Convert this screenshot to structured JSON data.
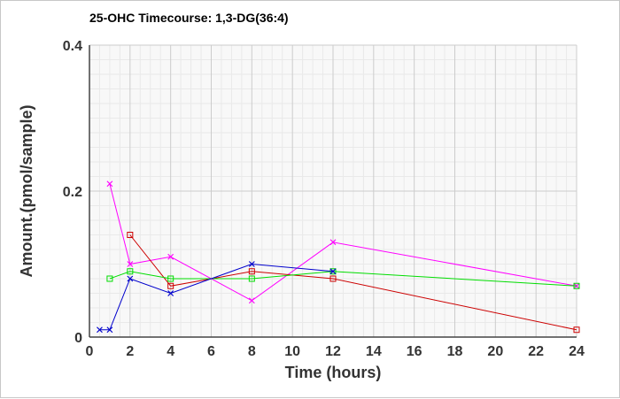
{
  "chart_data": {
    "type": "line",
    "title": "25-OHC Timecourse: 1,3-DG(36:4)",
    "xlabel": "Time (hours)",
    "ylabel": "Amount.(pmol/sample)",
    "xlim": [
      0,
      24
    ],
    "ylim": [
      0,
      0.4
    ],
    "x_ticks": [
      0,
      2,
      4,
      6,
      8,
      10,
      12,
      14,
      16,
      18,
      20,
      22,
      24
    ],
    "y_ticks": [
      0,
      0.2,
      0.4
    ],
    "y_tick_labels": [
      "0",
      "0.2",
      "0.4"
    ],
    "grid": true,
    "series": [
      {
        "color": "#ff00ff",
        "marker": "x",
        "x": [
          1,
          2,
          4,
          8,
          12,
          24
        ],
        "y": [
          0.21,
          0.1,
          0.11,
          0.05,
          0.13,
          0.07
        ]
      },
      {
        "color": "#cc0000",
        "marker": "square",
        "x": [
          2,
          4,
          8,
          12,
          24
        ],
        "y": [
          0.14,
          0.07,
          0.09,
          0.08,
          0.01
        ]
      },
      {
        "color": "#00dd00",
        "marker": "square",
        "x": [
          1,
          2,
          4,
          8,
          12,
          24
        ],
        "y": [
          0.08,
          0.09,
          0.08,
          0.08,
          0.09,
          0.07
        ]
      },
      {
        "color": "#0000cc",
        "marker": "x",
        "x": [
          0.5,
          1,
          2,
          4,
          8,
          12
        ],
        "y": [
          0.01,
          0.01,
          0.08,
          0.06,
          0.1,
          0.09
        ]
      }
    ]
  }
}
